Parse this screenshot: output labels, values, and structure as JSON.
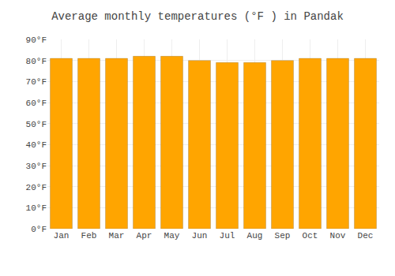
{
  "chart_data": {
    "type": "bar",
    "title": "Average monthly temperatures (°F ) in Pandak",
    "categories": [
      "Jan",
      "Feb",
      "Mar",
      "Apr",
      "May",
      "Jun",
      "Jul",
      "Aug",
      "Sep",
      "Oct",
      "Nov",
      "Dec"
    ],
    "values": [
      81,
      81,
      81,
      82,
      82,
      80,
      79,
      79,
      80,
      81,
      81,
      81
    ],
    "color": "#FFA500",
    "ylim": [
      0,
      90
    ],
    "yticks": [
      {
        "value": 0,
        "label": "0°F"
      },
      {
        "value": 10,
        "label": "10°F"
      },
      {
        "value": 20,
        "label": "20°F"
      },
      {
        "value": 30,
        "label": "30°F"
      },
      {
        "value": 40,
        "label": "40°F"
      },
      {
        "value": 50,
        "label": "50°F"
      },
      {
        "value": 60,
        "label": "60°F"
      },
      {
        "value": 70,
        "label": "70°F"
      },
      {
        "value": 80,
        "label": "80°F"
      },
      {
        "value": 90,
        "label": "90°F"
      }
    ],
    "grid": true
  }
}
